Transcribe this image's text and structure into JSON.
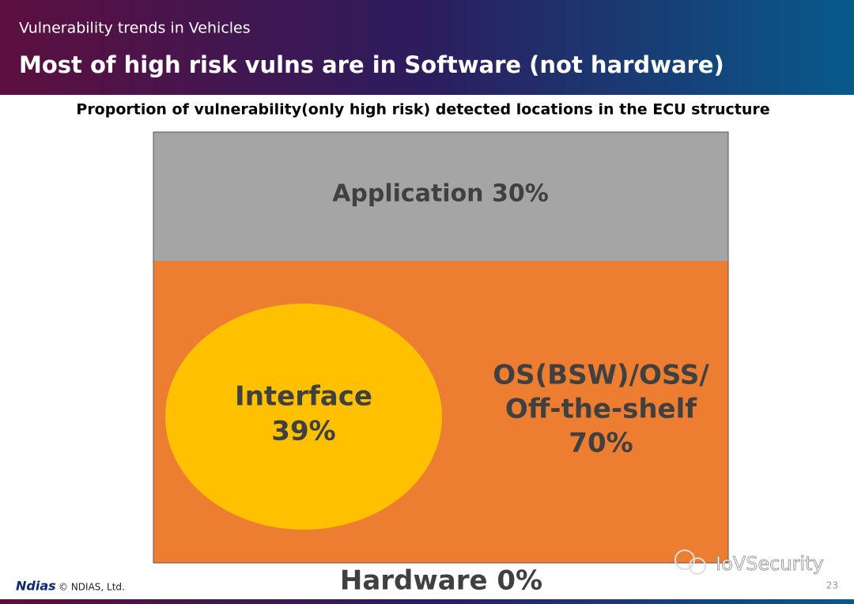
{
  "header": {
    "section": "Vulnerability trends in Vehicles",
    "title": "Most of high risk vulns are in Software (not hardware)"
  },
  "diagram": {
    "caption": "Proportion of vulnerability(only high risk) detected locations in the ECU structure",
    "regions": [
      {
        "lines": [
          "Application 30%"
        ]
      },
      {
        "lines": [
          "OS(BSW)/OSS/",
          "Off-the-shelf",
          "70%"
        ]
      },
      {
        "lines": [
          "Interface",
          "39%"
        ]
      },
      {
        "lines": [
          "Hardware 0%"
        ]
      }
    ]
  },
  "footer": {
    "logo": "Ndias",
    "copyright": "© NDIAS, Ltd.",
    "page": "23",
    "watermark": "IoVSecurity"
  }
}
